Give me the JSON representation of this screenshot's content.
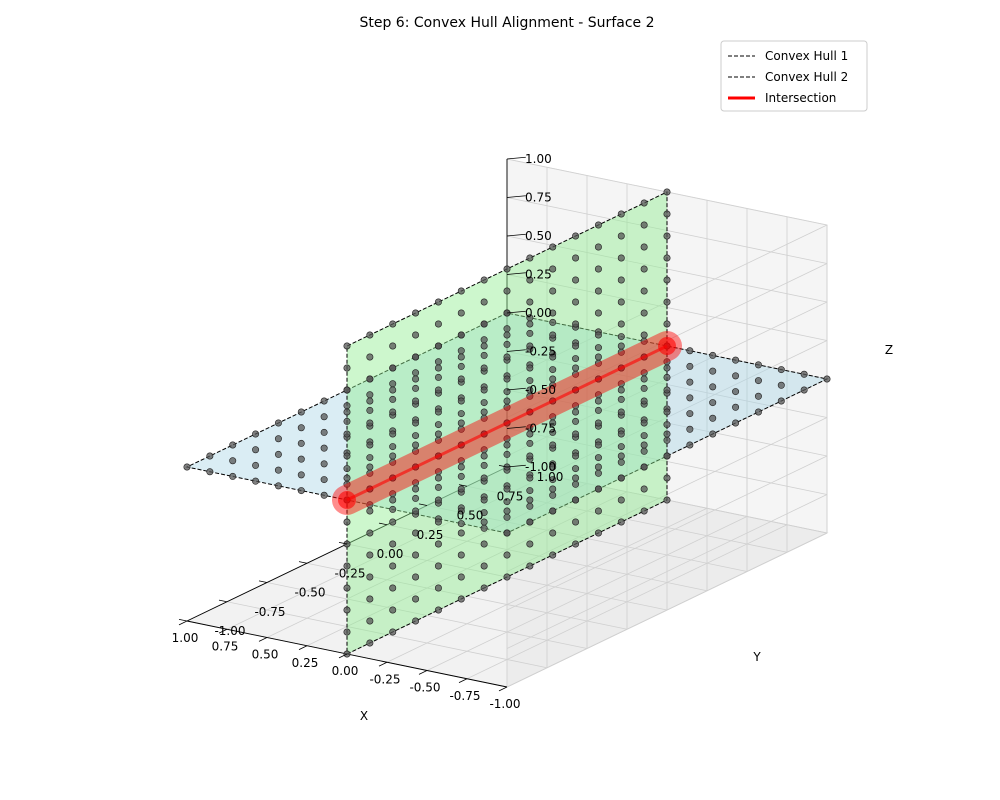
{
  "chart_data": {
    "type": "scatter",
    "projection": "3d",
    "title": "Step 6: Convex Hull Alignment - Surface 2",
    "xlabel": "X",
    "ylabel": "Y",
    "zlabel": "Z",
    "xlim": [
      -1.0,
      1.0
    ],
    "ylim": [
      -1.0,
      1.0
    ],
    "zlim": [
      -1.0,
      1.0
    ],
    "xticks": [
      "-1.00",
      "-0.75",
      "-0.50",
      "-0.25",
      "0.00",
      "0.25",
      "0.50",
      "0.75",
      "1.00"
    ],
    "yticks": [
      "-1.00",
      "-0.75",
      "-0.50",
      "-0.25",
      "0.00",
      "0.25",
      "0.50",
      "0.75",
      "1.00"
    ],
    "zticks": [
      "-1.00",
      "-0.75",
      "-0.50",
      "-0.25",
      "0.00",
      "0.25",
      "0.50",
      "0.75",
      "1.00"
    ],
    "grid": true,
    "legend_position": "top-right",
    "legend": [
      {
        "label": "Convex Hull 1",
        "style": "dashed",
        "color": "#000000"
      },
      {
        "label": "Convex Hull 2",
        "style": "dashed",
        "color": "#000000"
      },
      {
        "label": "Intersection",
        "style": "solid",
        "color": "#ff0000"
      }
    ],
    "surfaces": [
      {
        "plane": "z = 0",
        "x_range": [
          -1,
          1
        ],
        "y_range": [
          -1,
          1
        ],
        "grid_n": 15,
        "fill": "#add8e6",
        "point_color": "#555555"
      },
      {
        "plane": "x = 0",
        "y_range": [
          -1,
          1
        ],
        "z_range": [
          -1,
          1
        ],
        "grid_n": 15,
        "fill": "#90ee90",
        "point_color": "#555555"
      }
    ],
    "intersection": {
      "x": [
        0,
        0
      ],
      "y": [
        -1,
        1
      ],
      "z": [
        0,
        0
      ],
      "color": "#ff0000"
    }
  }
}
